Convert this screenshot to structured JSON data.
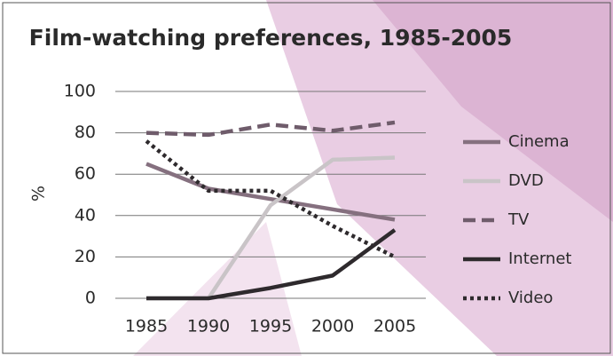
{
  "chart_data": {
    "type": "line",
    "title": "Film-watching preferences, 1985-2005",
    "y_label": "%",
    "categories": [
      "1985",
      "1990",
      "1995",
      "2000",
      "2005"
    ],
    "series": [
      {
        "name": "Cinema",
        "color": "#85707f",
        "style": "solid",
        "values": [
          65,
          53,
          48,
          43,
          38
        ]
      },
      {
        "name": "DVD",
        "color": "#c9c4c7",
        "style": "solid",
        "values": [
          0,
          0,
          45,
          67,
          68
        ]
      },
      {
        "name": "TV",
        "color": "#6f5c6b",
        "style": "dashed",
        "values": [
          80,
          79,
          84,
          81,
          85
        ]
      },
      {
        "name": "Internet",
        "color": "#2e2a2d",
        "style": "solid",
        "values": [
          0,
          0,
          5,
          11,
          33
        ]
      },
      {
        "name": "Video",
        "color": "#2e2a2d",
        "style": "dotted",
        "values": [
          76,
          52,
          52,
          35,
          20
        ]
      }
    ],
    "ylim": [
      0,
      100
    ],
    "yticks": [
      0,
      20,
      40,
      60,
      80,
      100
    ],
    "grid": true,
    "legend": "right"
  }
}
